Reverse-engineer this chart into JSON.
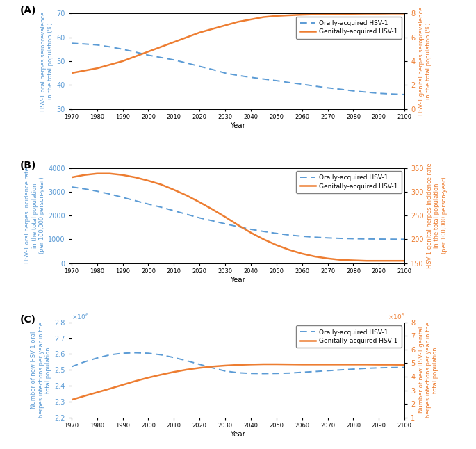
{
  "years": [
    1970,
    1975,
    1980,
    1985,
    1990,
    1995,
    2000,
    2005,
    2010,
    2015,
    2020,
    2025,
    2030,
    2035,
    2040,
    2045,
    2050,
    2055,
    2060,
    2065,
    2070,
    2075,
    2080,
    2085,
    2090,
    2095,
    2100
  ],
  "A_oral_blue": [
    57.5,
    57.2,
    56.8,
    56.0,
    55.0,
    53.8,
    52.5,
    51.5,
    50.5,
    49.2,
    47.8,
    46.5,
    45.0,
    44.0,
    43.2,
    42.5,
    41.8,
    41.0,
    40.3,
    39.5,
    38.8,
    38.2,
    37.5,
    37.0,
    36.5,
    36.2,
    36.0
  ],
  "A_genital_orange": [
    3.0,
    3.2,
    3.4,
    3.7,
    4.0,
    4.4,
    4.8,
    5.2,
    5.6,
    6.0,
    6.4,
    6.7,
    7.0,
    7.3,
    7.5,
    7.7,
    7.8,
    7.85,
    7.9,
    7.93,
    7.95,
    7.97,
    7.98,
    7.99,
    7.99,
    8.0,
    8.0
  ],
  "A_yleft_min": 30,
  "A_yleft_max": 70,
  "A_yleft_ticks": [
    30,
    40,
    50,
    60,
    70
  ],
  "A_yright_min": 0,
  "A_yright_max": 8,
  "A_yright_ticks": [
    0,
    2,
    4,
    6,
    8
  ],
  "A_ylabel_left": "HSV-1 oral herpes seroprevalence\nin the total population (%)",
  "A_ylabel_right": "HSV-1 genital herpes seroprevalence\nin the total population (%)",
  "B_oral_blue": [
    3200,
    3120,
    3020,
    2900,
    2760,
    2620,
    2480,
    2350,
    2200,
    2050,
    1900,
    1780,
    1650,
    1530,
    1420,
    1330,
    1250,
    1180,
    1130,
    1090,
    1060,
    1040,
    1025,
    1015,
    1010,
    1005,
    1000
  ],
  "B_genital_orange": [
    330,
    335,
    338,
    338,
    335,
    330,
    323,
    315,
    304,
    292,
    278,
    263,
    247,
    230,
    214,
    200,
    188,
    178,
    170,
    164,
    160,
    157,
    156,
    155,
    155,
    155,
    155
  ],
  "B_yleft_min": 0,
  "B_yleft_max": 4000,
  "B_yleft_ticks": [
    0,
    1000,
    2000,
    3000,
    4000
  ],
  "B_yright_min": 150,
  "B_yright_max": 350,
  "B_yright_ticks": [
    150,
    200,
    250,
    300,
    350
  ],
  "B_ylabel_left": "HSV-1 oral herpes incidence rate\nin the total population\n(per 100,000 person-year)",
  "B_ylabel_right": "HSV-1 genital herpes incidence rate\nin the total population\n(per 100,000 person-year)",
  "C_oral_blue": [
    2520000,
    2550000,
    2575000,
    2595000,
    2605000,
    2608000,
    2605000,
    2595000,
    2578000,
    2558000,
    2535000,
    2513000,
    2493000,
    2482000,
    2478000,
    2477000,
    2478000,
    2480000,
    2485000,
    2490000,
    2495000,
    2500000,
    2505000,
    2510000,
    2513000,
    2515000,
    2516000
  ],
  "C_genital_orange": [
    230000,
    258000,
    285000,
    312000,
    340000,
    368000,
    393000,
    415000,
    435000,
    452000,
    465000,
    475000,
    482000,
    487000,
    490000,
    492000,
    492000,
    491000,
    490000,
    490000,
    490000,
    490000,
    490000,
    490000,
    489000,
    489000,
    488000
  ],
  "C_yleft_min": 2200000.0,
  "C_yleft_max": 2800000.0,
  "C_yleft_ticks": [
    2200000.0,
    2300000.0,
    2400000.0,
    2500000.0,
    2600000.0,
    2700000.0,
    2800000.0
  ],
  "C_yright_min": 100000.0,
  "C_yright_max": 800000.0,
  "C_yright_ticks": [
    100000.0,
    200000.0,
    300000.0,
    400000.0,
    500000.0,
    600000.0,
    700000.0,
    800000.0
  ],
  "C_ylabel_left": "Number of new HSV-1 oral\nherpes infections per year in the\ntotal population",
  "C_ylabel_right": "Number of new HSV-1 genital\nherpes infections per year in the\ntotal population",
  "color_blue": "#5B9BD5",
  "color_orange": "#ED7D31",
  "legend_label_blue": "Orally-acquired HSV-1",
  "legend_label_orange": "Genitally-acquired HSV-1",
  "xlabel": "Year",
  "xticks": [
    1970,
    1980,
    1990,
    2000,
    2010,
    2020,
    2030,
    2040,
    2050,
    2060,
    2070,
    2080,
    2090,
    2100
  ],
  "panel_labels": [
    "(A)",
    "(B)",
    "(C)"
  ]
}
